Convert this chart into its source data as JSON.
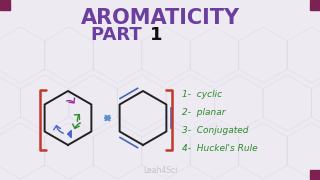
{
  "title_line1": "AROMATICITY",
  "title_line2_part": "PART ",
  "title_line2_num": "1",
  "title_color": "#6B3FA0",
  "title_fontsize": 15,
  "part_fontsize": 13,
  "background_color": "#EEEAF2",
  "hex_outline_color": "#222222",
  "bracket_color": "#C0392B",
  "arrow_color": "#5B8FD4",
  "list_color": "#2A8C2A",
  "list_fontsize": 6.5,
  "watermark": "Leah4Sci",
  "watermark_color": "#BBBBBB",
  "list_items": [
    "1-  cyclic",
    "2-  planar",
    "3-  Conjugated",
    "4-  Huckel's Rule"
  ],
  "corner_color": "#7B2252",
  "hex_tile_color": "#D0CCE0",
  "purple_arrow": "#9B30A0",
  "green_arrow": "#2E8B2E",
  "blue_arrow": "#4466CC"
}
